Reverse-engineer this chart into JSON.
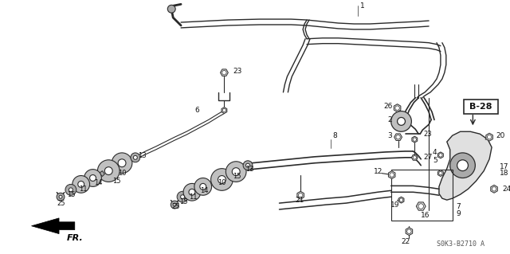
{
  "bg_color": "#ffffff",
  "line_color": "#2a2a2a",
  "text_color": "#111111",
  "figsize": [
    6.4,
    3.19
  ],
  "dpi": 100,
  "part_number": "S0K3-B2710 A",
  "b28_label": "B-28",
  "fr_label": "FR.",
  "gray_fill": "#c0c0c0",
  "gray_dark": "#888888",
  "gray_light": "#e0e0e0",
  "gray_mid": "#aaaaaa"
}
